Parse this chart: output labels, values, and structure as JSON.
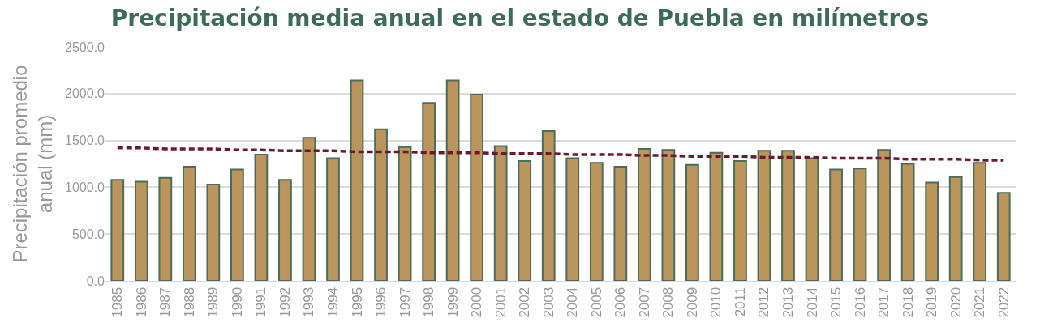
{
  "chart_data": {
    "type": "bar",
    "title": "Precipitación media anual en el estado de Puebla en milímetros",
    "ylabel": "Precipitación promedio\nanual (mm)",
    "categories": [
      "1985",
      "1986",
      "1987",
      "1988",
      "1989",
      "1990",
      "1991",
      "1992",
      "1993",
      "1994",
      "1995",
      "1996",
      "1997",
      "1998",
      "1999",
      "2000",
      "2001",
      "2002",
      "2003",
      "2004",
      "2005",
      "2006",
      "2007",
      "2008",
      "2009",
      "2010",
      "2011",
      "2012",
      "2013",
      "2014",
      "2015",
      "2016",
      "2017",
      "2018",
      "2019",
      "2020",
      "2021",
      "2022"
    ],
    "series": [
      {
        "color": "#bb955c",
        "values": [
          1080,
          1060,
          1100,
          1220,
          1030,
          1190,
          1350,
          1080,
          1530,
          1310,
          2140,
          1620,
          1430,
          1900,
          2140,
          1990,
          1440,
          1280,
          1600,
          1310,
          1260,
          1220,
          1410,
          1400,
          1240,
          1370,
          1280,
          1390,
          1390,
          1310,
          1190,
          1200,
          1400,
          1250,
          1050,
          1110,
          1260,
          940
        ]
      },
      {
        "type": "line",
        "color": "#6b1a2e",
        "line_style": "dashed",
        "marker": "none",
        "values": [
          1420,
          1420,
          1410,
          1410,
          1410,
          1400,
          1400,
          1390,
          1390,
          1390,
          1380,
          1380,
          1380,
          1370,
          1370,
          1370,
          1360,
          1360,
          1360,
          1350,
          1350,
          1350,
          1340,
          1340,
          1330,
          1330,
          1330,
          1320,
          1320,
          1320,
          1310,
          1310,
          1310,
          1300,
          1300,
          1300,
          1290,
          1290
        ]
      }
    ],
    "ylim": [
      0,
      2500
    ],
    "yticks": [
      {
        "value": 0,
        "label": "0.0"
      },
      {
        "value": 500,
        "label": "500.0"
      },
      {
        "value": 1000,
        "label": "1000.0"
      },
      {
        "value": 1500,
        "label": "1500.0"
      },
      {
        "value": 2000,
        "label": "2000.0"
      },
      {
        "value": 2500,
        "label": "2500.0"
      }
    ],
    "grid": "y",
    "legend": false
  }
}
